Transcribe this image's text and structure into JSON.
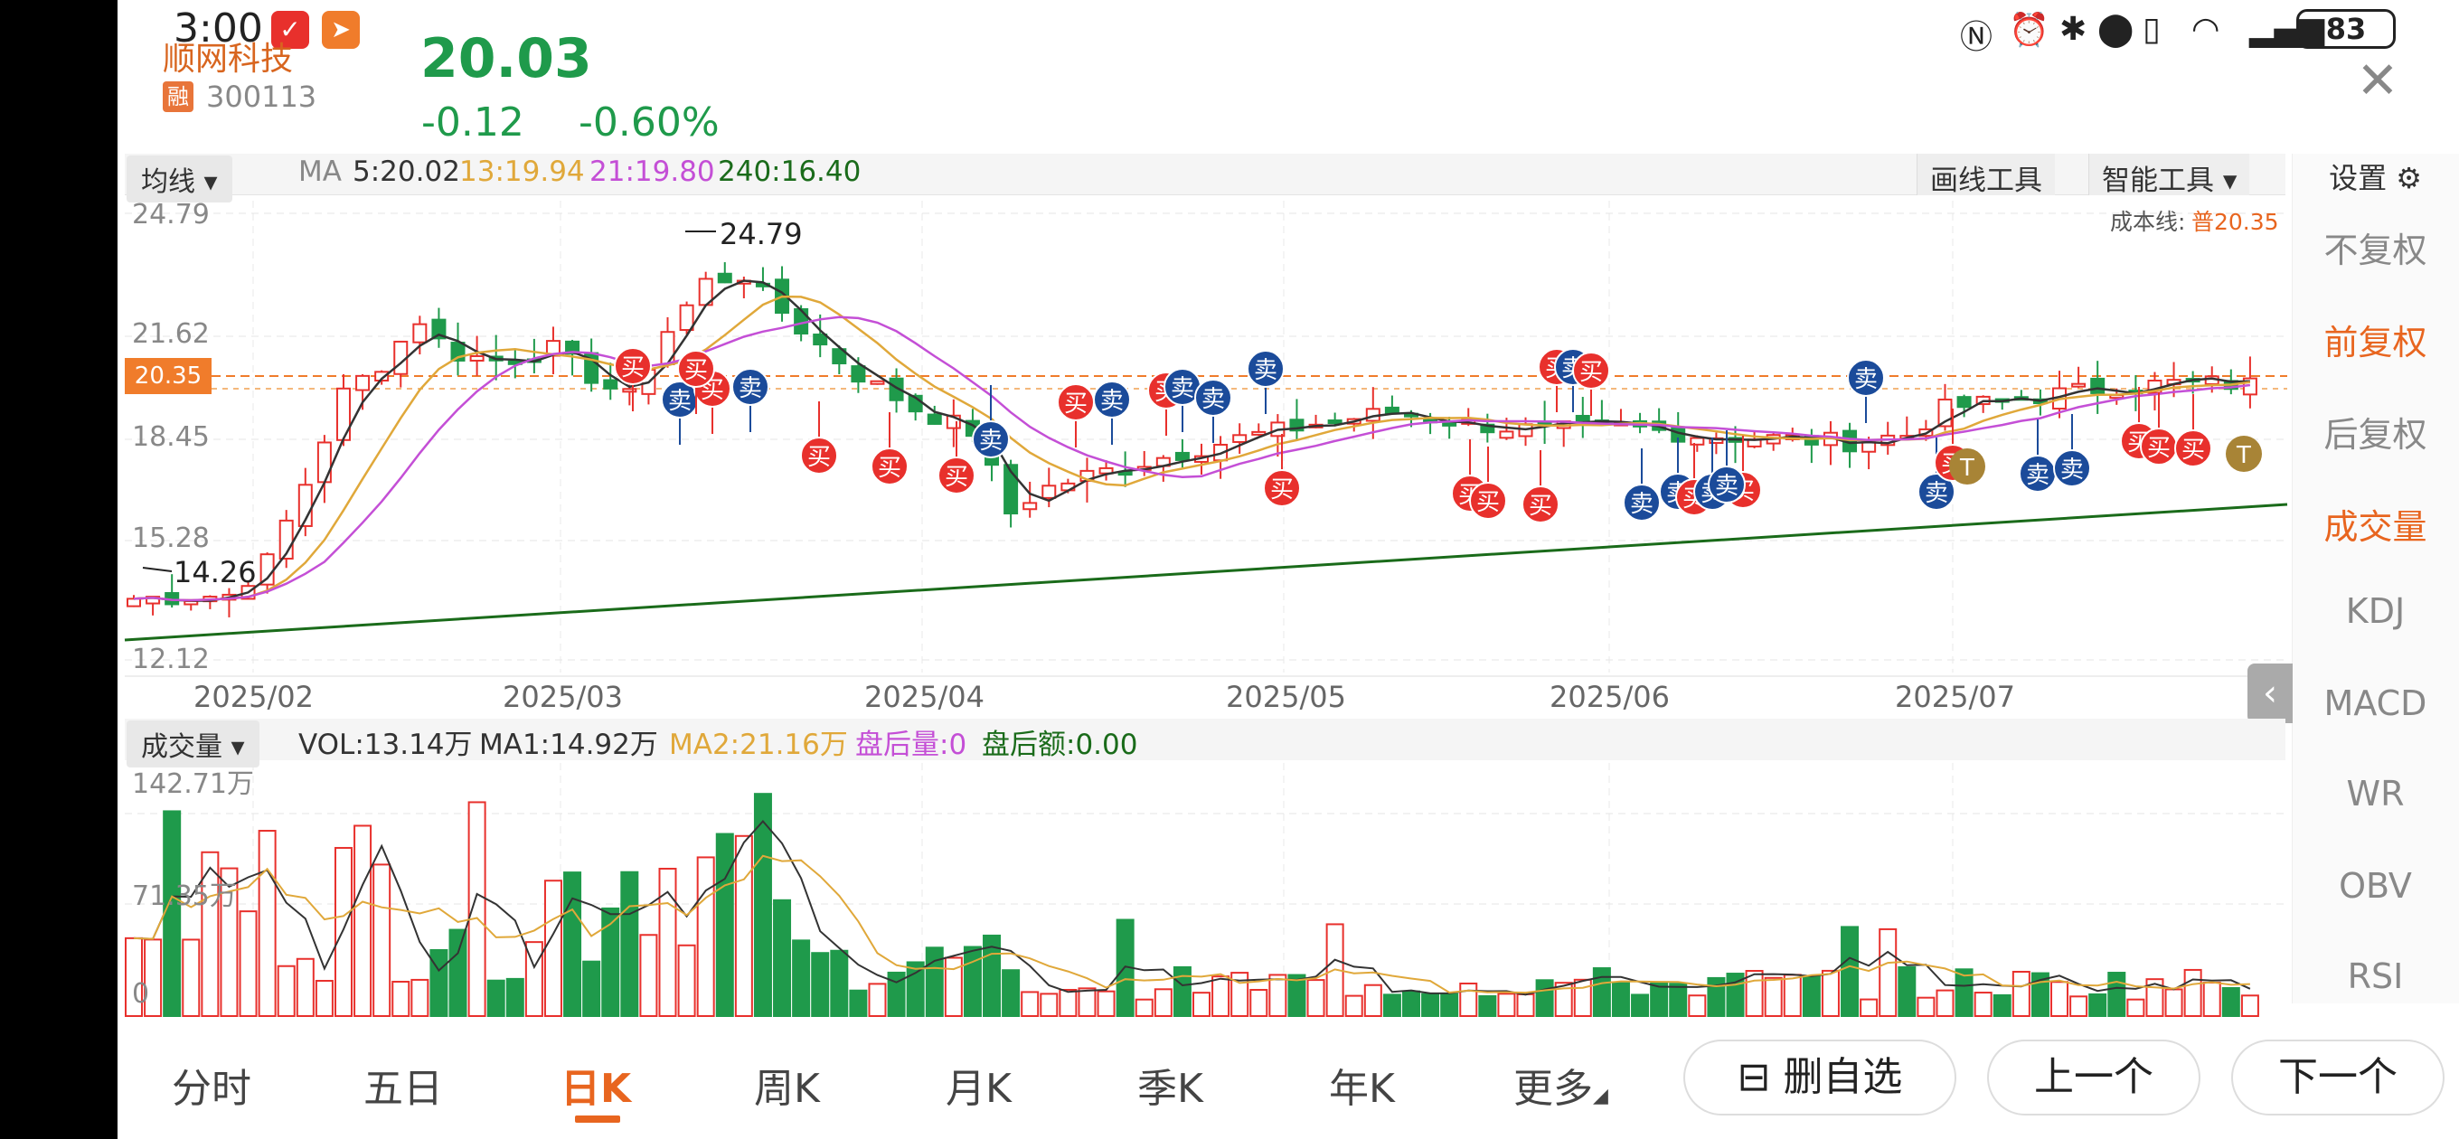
{
  "status_bar": {
    "time": "3:00",
    "battery": "83"
  },
  "stock": {
    "name": "顺网科技",
    "rong": "融",
    "code": "300113",
    "price": "20.03",
    "change": "-0.12",
    "change_pct": "-0.60%"
  },
  "ma_bar": {
    "dropdown": "均线",
    "ma_label": "MA",
    "ma5": "5:20.02",
    "ma13": "13:19.94",
    "ma21": "21:19.80",
    "ma240": "240:16.40",
    "draw_tool": "画线工具",
    "smart_tool": "智能工具",
    "settings": "设置"
  },
  "side_menu": {
    "items": [
      "不复权",
      "前复权",
      "后复权",
      "成交量",
      "KDJ",
      "MACD",
      "WR",
      "OBV",
      "RSI"
    ],
    "active": [
      "前复权",
      "成交量"
    ]
  },
  "price_chart": {
    "cost_label": "成本线:",
    "cost_value": "普20.35",
    "current_tag": "20.35",
    "y_ticks": [
      "24.79",
      "21.62",
      "18.45",
      "15.28",
      "12.12"
    ],
    "high_label": "24.79",
    "low_label": "14.26",
    "dates": [
      "2025/02",
      "2025/03",
      "2025/04",
      "2025/05",
      "2025/06",
      "2025/07"
    ]
  },
  "volume_bar": {
    "dropdown": "成交量",
    "vol": "VOL:13.14万",
    "ma1": "MA1:14.92万",
    "ma2": "MA2:21.16万",
    "after_vol": "盘后量:0",
    "after_amt": "盘后额:0.00",
    "y_ticks": [
      "142.71万",
      "71.35万",
      "0"
    ]
  },
  "bottom_tabs": [
    "分时",
    "五日",
    "日K",
    "周K",
    "月K",
    "季K",
    "年K",
    "更多"
  ],
  "buttons": {
    "remove_fav": "删自选",
    "prev": "上一个",
    "next": "下一个"
  },
  "marker_labels": {
    "buy": "买",
    "sell": "卖",
    "t": "T"
  },
  "colors": {
    "up": "#e8302c",
    "down": "#1f9a4b",
    "accent": "#e8651f",
    "sell_marker": "#1b4b9a",
    "t_marker": "#a88436"
  },
  "chart_data": {
    "type": "candlestick",
    "y_range": [
      12.12,
      24.79
    ],
    "ma_series": [
      "MA5",
      "MA13",
      "MA21",
      "MA240"
    ],
    "volume_range": [
      0,
      142.71
    ],
    "volume_unit": "万"
  }
}
